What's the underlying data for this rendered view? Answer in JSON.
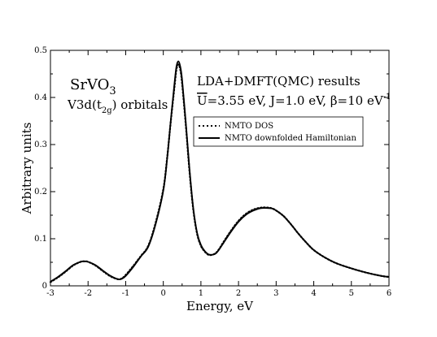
{
  "chart_data": {
    "type": "line",
    "xlabel": "Energy, eV",
    "ylabel": "Arbitrary units",
    "xlim": [
      -3,
      6
    ],
    "ylim": [
      0,
      0.5
    ],
    "x_ticks": [
      "-3",
      "-2",
      "-1",
      "0",
      "1",
      "2",
      "3",
      "4",
      "5",
      "6"
    ],
    "y_ticks": [
      "0",
      "0.1",
      "0.2",
      "0.3",
      "0.4",
      "0.5"
    ],
    "grid": false,
    "legend_position": "top-right",
    "annotations": {
      "compound_main": "SrVO",
      "compound_sub": "3",
      "orbital_prefix": "V3d(t",
      "orbital_sub": "2g",
      "orbital_suffix": ") orbitals",
      "method": "LDA+DMFT(QMC) results",
      "params_u": "U",
      "params_mid": "=3.55 eV, J=1.0 eV, β=10 eV",
      "params_sup": "-1"
    },
    "series": [
      {
        "name": "NMTO DOS",
        "style": "dotted",
        "color": "#000000",
        "x": [
          -3.0,
          -2.8,
          -2.6,
          -2.4,
          -2.2,
          -2.1,
          -2.0,
          -1.8,
          -1.6,
          -1.4,
          -1.2,
          -1.1,
          -1.0,
          -0.8,
          -0.6,
          -0.4,
          -0.2,
          0.0,
          0.1,
          0.2,
          0.3,
          0.35,
          0.4,
          0.45,
          0.5,
          0.6,
          0.7,
          0.8,
          0.9,
          1.0,
          1.1,
          1.2,
          1.3,
          1.4,
          1.5,
          1.6,
          1.8,
          2.0,
          2.2,
          2.4,
          2.6,
          2.8,
          2.9,
          3.0,
          3.2,
          3.4,
          3.6,
          3.8,
          4.0,
          4.3,
          4.6,
          5.0,
          5.4,
          5.8,
          6.0
        ],
        "y": [
          0.008,
          0.018,
          0.03,
          0.043,
          0.051,
          0.052,
          0.051,
          0.043,
          0.031,
          0.02,
          0.014,
          0.016,
          0.023,
          0.042,
          0.063,
          0.085,
          0.135,
          0.205,
          0.27,
          0.35,
          0.425,
          0.46,
          0.47,
          0.46,
          0.43,
          0.34,
          0.24,
          0.16,
          0.11,
          0.085,
          0.073,
          0.066,
          0.066,
          0.07,
          0.08,
          0.093,
          0.117,
          0.138,
          0.153,
          0.162,
          0.166,
          0.166,
          0.164,
          0.16,
          0.148,
          0.13,
          0.11,
          0.092,
          0.076,
          0.06,
          0.048,
          0.037,
          0.028,
          0.021,
          0.019
        ]
      },
      {
        "name": "NMTO downfolded Hamiltonian",
        "style": "solid",
        "color": "#000000",
        "x": [
          -3.0,
          -2.8,
          -2.6,
          -2.4,
          -2.2,
          -2.1,
          -2.0,
          -1.8,
          -1.6,
          -1.4,
          -1.2,
          -1.1,
          -1.0,
          -0.8,
          -0.6,
          -0.4,
          -0.2,
          0.0,
          0.1,
          0.2,
          0.3,
          0.35,
          0.4,
          0.45,
          0.5,
          0.6,
          0.7,
          0.8,
          0.9,
          1.0,
          1.1,
          1.2,
          1.3,
          1.4,
          1.5,
          1.6,
          1.8,
          2.0,
          2.2,
          2.4,
          2.6,
          2.8,
          2.9,
          3.0,
          3.2,
          3.4,
          3.6,
          3.8,
          4.0,
          4.3,
          4.6,
          5.0,
          5.4,
          5.8,
          6.0
        ],
        "y": [
          0.009,
          0.019,
          0.031,
          0.044,
          0.051,
          0.052,
          0.051,
          0.044,
          0.032,
          0.021,
          0.014,
          0.015,
          0.021,
          0.04,
          0.062,
          0.083,
          0.132,
          0.202,
          0.268,
          0.352,
          0.432,
          0.466,
          0.477,
          0.466,
          0.438,
          0.345,
          0.245,
          0.163,
          0.112,
          0.087,
          0.074,
          0.067,
          0.066,
          0.069,
          0.079,
          0.091,
          0.115,
          0.136,
          0.151,
          0.16,
          0.165,
          0.165,
          0.164,
          0.16,
          0.148,
          0.13,
          0.11,
          0.092,
          0.076,
          0.06,
          0.048,
          0.037,
          0.028,
          0.021,
          0.019
        ]
      }
    ]
  }
}
